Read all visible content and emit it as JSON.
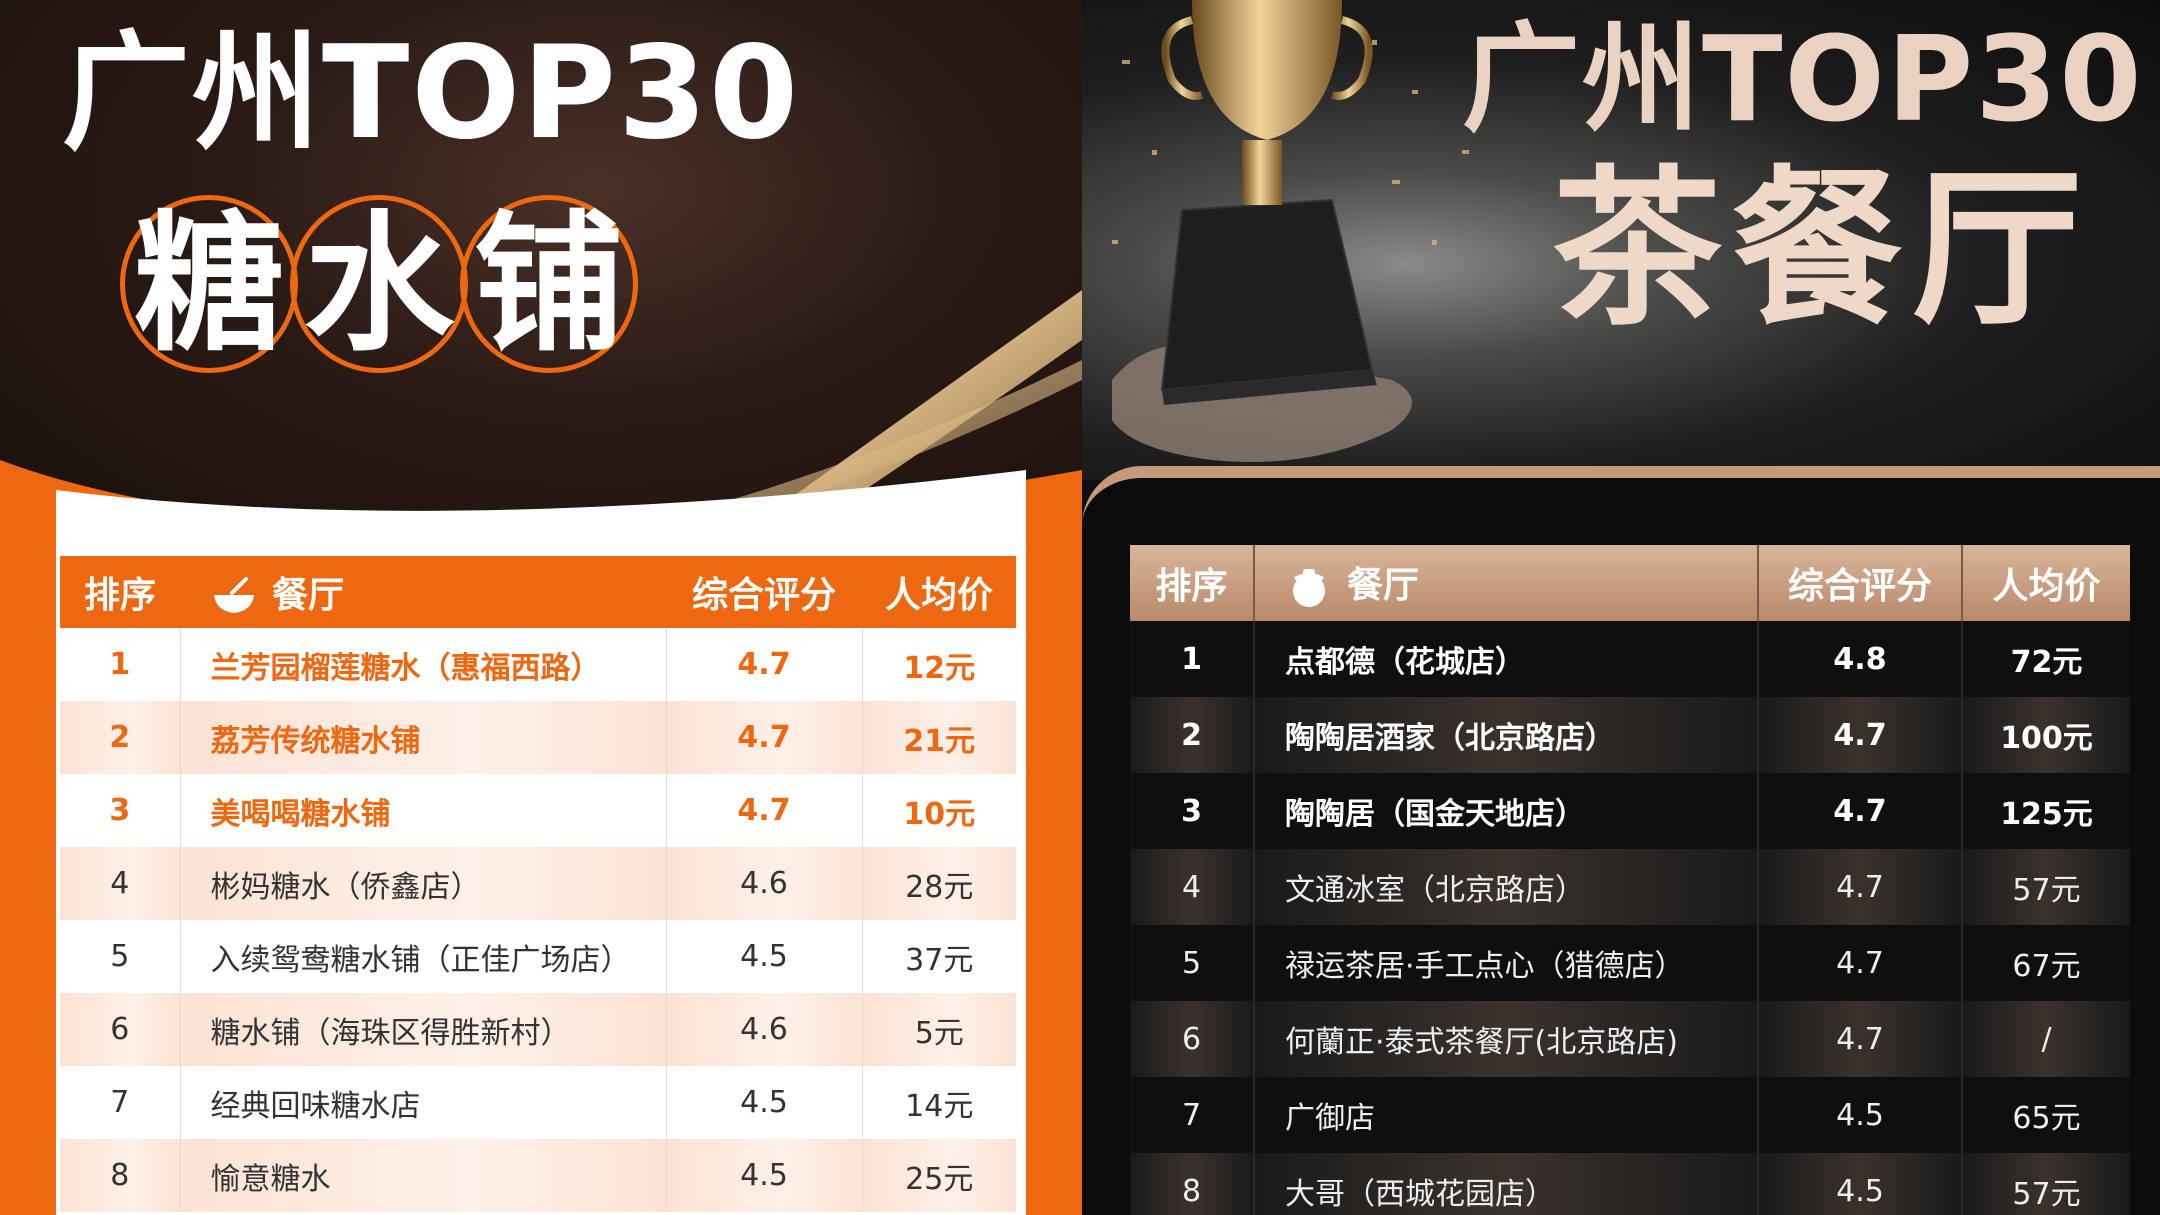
{
  "left": {
    "title": "广州TOP30",
    "subtitle_chars": [
      "糖",
      "水",
      "铺"
    ],
    "colors": {
      "accent": "#ee6811",
      "dark": "#2a1a15"
    },
    "header": {
      "rank": "排序",
      "name": "餐厅",
      "score": "综合评分",
      "price": "人均价",
      "icon": "bowl-icon"
    },
    "rows": [
      {
        "rank": "1",
        "name": "兰芳园榴莲糖水（惠福西路）",
        "score": "4.7",
        "price": "12元"
      },
      {
        "rank": "2",
        "name": "荔芳传统糖水铺",
        "score": "4.7",
        "price": "21元"
      },
      {
        "rank": "3",
        "name": "美喝喝糖水铺",
        "score": "4.7",
        "price": "10元"
      },
      {
        "rank": "4",
        "name": "彬妈糖水（侨鑫店）",
        "score": "4.6",
        "price": "28元"
      },
      {
        "rank": "5",
        "name": "入续鸳鸯糖水铺（正佳广场店）",
        "score": "4.5",
        "price": "37元"
      },
      {
        "rank": "6",
        "name": "糖水铺（海珠区得胜新村）",
        "score": "4.6",
        "price": "5元"
      },
      {
        "rank": "7",
        "name": "经典回味糖水店",
        "score": "4.5",
        "price": "14元"
      },
      {
        "rank": "8",
        "name": "愉意糖水",
        "score": "4.5",
        "price": "25元"
      }
    ]
  },
  "right": {
    "title": "广州TOP30",
    "subtitle": "茶餐厅",
    "colors": {
      "accent": "#c49a7b",
      "dark": "#0f0f0f"
    },
    "header": {
      "rank": "排序",
      "name": "餐厅",
      "score": "综合评分",
      "price": "人均价",
      "icon": "teapot-icon"
    },
    "rows": [
      {
        "rank": "1",
        "name": "点都德（花城店）",
        "score": "4.8",
        "price": "72元"
      },
      {
        "rank": "2",
        "name": "陶陶居酒家（北京路店）",
        "score": "4.7",
        "price": "100元"
      },
      {
        "rank": "3",
        "name": "陶陶居（国金天地店）",
        "score": "4.7",
        "price": "125元"
      },
      {
        "rank": "4",
        "name": "文通冰室（北京路店）",
        "score": "4.7",
        "price": "57元"
      },
      {
        "rank": "5",
        "name": "禄运茶居·手工点心（猎德店）",
        "score": "4.7",
        "price": "67元"
      },
      {
        "rank": "6",
        "name": "何蘭正·泰式茶餐厅(北京路店)",
        "score": "4.7",
        "price": "/"
      },
      {
        "rank": "7",
        "name": "广御店",
        "score": "4.5",
        "price": "65元"
      },
      {
        "rank": "8",
        "name": "大哥（西城花园店）",
        "score": "4.5",
        "price": "57元"
      }
    ]
  }
}
